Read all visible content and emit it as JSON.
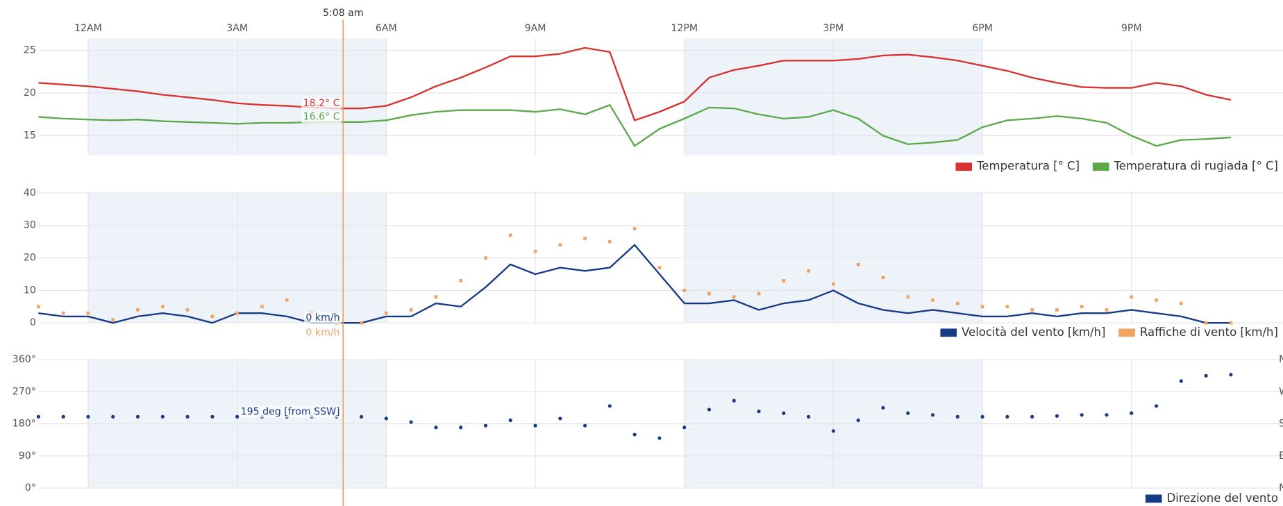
{
  "cursor": {
    "x": 5.133,
    "label": "5:08 am"
  },
  "chart_data": [
    {
      "type": "line",
      "x": [
        -1,
        -0.5,
        0,
        0.5,
        1,
        1.5,
        2,
        2.5,
        3,
        3.5,
        4,
        4.5,
        5,
        5.5,
        6,
        6.5,
        7,
        7.5,
        8,
        8.5,
        9,
        9.5,
        10,
        10.5,
        11,
        11.5,
        12,
        12.5,
        13,
        13.5,
        14,
        14.5,
        15,
        15.5,
        16,
        16.5,
        17,
        17.5,
        18,
        18.5,
        19,
        19.5,
        20,
        20.5,
        21,
        21.5,
        22,
        22.5,
        23
      ],
      "xlim": [
        -1,
        24
      ],
      "xticks": [
        {
          "value": 0,
          "label": "12AM"
        },
        {
          "value": 3,
          "label": "3AM"
        },
        {
          "value": 6,
          "label": "6AM"
        },
        {
          "value": 9,
          "label": "9AM"
        },
        {
          "value": 12,
          "label": "12PM"
        },
        {
          "value": 15,
          "label": "3PM"
        },
        {
          "value": 18,
          "label": "6PM"
        },
        {
          "value": 21,
          "label": "9PM"
        }
      ],
      "shaded": [
        [
          0,
          6
        ],
        [
          12,
          18
        ]
      ],
      "ylim": [
        12.7,
        26.4
      ],
      "yticks": [
        15,
        20,
        25
      ],
      "grid": true,
      "legend": "bottom-right",
      "series": [
        {
          "name": "Temperatura [° C]",
          "color": "#d93232",
          "cursor_label": "18.2° C",
          "values": [
            21.2,
            21.0,
            20.8,
            20.5,
            20.2,
            19.8,
            19.5,
            19.2,
            18.8,
            18.6,
            18.5,
            18.3,
            18.2,
            18.2,
            18.5,
            19.5,
            20.8,
            21.8,
            23.0,
            24.3,
            24.3,
            24.6,
            25.3,
            24.8,
            16.8,
            17.8,
            19.0,
            21.8,
            22.7,
            23.2,
            23.8,
            23.8,
            23.8,
            24.0,
            24.4,
            24.5,
            24.2,
            23.8,
            23.2,
            22.6,
            21.8,
            21.2,
            20.7,
            20.6,
            20.6,
            21.2,
            20.8,
            19.8,
            19.2
          ]
        },
        {
          "name": "Temperatura di rugiada [° C]",
          "color": "#5ca84a",
          "cursor_label": "16.6° C",
          "values": [
            17.2,
            17.0,
            16.9,
            16.8,
            16.9,
            16.7,
            16.6,
            16.5,
            16.4,
            16.5,
            16.5,
            16.6,
            16.6,
            16.6,
            16.8,
            17.4,
            17.8,
            18.0,
            18.0,
            18.0,
            17.8,
            18.1,
            17.5,
            18.6,
            13.8,
            15.8,
            17.0,
            18.3,
            18.2,
            17.5,
            17.0,
            17.2,
            18.0,
            17.0,
            15.0,
            14.0,
            14.2,
            14.5,
            16.0,
            16.8,
            17.0,
            17.3,
            17.0,
            16.5,
            15.0,
            13.8,
            14.5,
            14.6,
            14.8
          ]
        }
      ]
    },
    {
      "type": "line",
      "x": [
        -1,
        -0.5,
        0,
        0.5,
        1,
        1.5,
        2,
        2.5,
        3,
        3.5,
        4,
        4.5,
        5,
        5.5,
        6,
        6.5,
        7,
        7.5,
        8,
        8.5,
        9,
        9.5,
        10,
        10.5,
        11,
        11.5,
        12,
        12.5,
        13,
        13.5,
        14,
        14.5,
        15,
        15.5,
        16,
        16.5,
        17,
        17.5,
        18,
        18.5,
        19,
        19.5,
        20,
        20.5,
        21,
        21.5,
        22,
        22.5,
        23
      ],
      "xlim": [
        -1,
        24
      ],
      "ylim": [
        0,
        40
      ],
      "yticks": [
        0,
        10,
        20,
        30,
        40
      ],
      "grid": true,
      "legend": "bottom-right",
      "series": [
        {
          "name": "Velocità del vento [km/h]",
          "color": "#173a87",
          "cursor_label": "0 km/h",
          "values": [
            3,
            2,
            2,
            0,
            2,
            3,
            2,
            0,
            3,
            3,
            2,
            0,
            0,
            0,
            2,
            2,
            6,
            5,
            11,
            18,
            15,
            17,
            16,
            17,
            24,
            15,
            6,
            6,
            7,
            4,
            6,
            7,
            10,
            6,
            4,
            3,
            4,
            3,
            2,
            2,
            3,
            2,
            3,
            3,
            4,
            3,
            2,
            0,
            0
          ]
        },
        {
          "name": "Raffiche di vento [km/h]",
          "color": "#f0a464",
          "type": "scatter",
          "cursor_label": "0 km/h",
          "values": [
            5,
            3,
            3,
            1,
            4,
            5,
            4,
            2,
            3,
            5,
            7,
            3,
            0,
            0,
            3,
            4,
            8,
            13,
            20,
            27,
            22,
            24,
            26,
            25,
            29,
            17,
            10,
            9,
            8,
            9,
            13,
            16,
            12,
            18,
            14,
            8,
            7,
            6,
            5,
            5,
            4,
            4,
            5,
            4,
            8,
            7,
            6,
            0,
            0
          ]
        }
      ]
    },
    {
      "type": "scatter",
      "x": [
        -1,
        -0.5,
        0,
        0.5,
        1,
        1.5,
        2,
        2.5,
        3,
        3.5,
        4,
        4.5,
        5,
        5.5,
        6,
        6.5,
        7,
        7.5,
        8,
        8.5,
        9,
        9.5,
        10,
        10.5,
        11,
        11.5,
        12,
        12.5,
        13,
        13.5,
        14,
        14.5,
        15,
        15.5,
        16,
        16.5,
        17,
        17.5,
        18,
        18.5,
        19,
        19.5,
        20,
        20.5,
        21,
        21.5,
        22,
        22.5,
        23
      ],
      "xlim": [
        -1,
        24
      ],
      "ylim": [
        0,
        360
      ],
      "yticks": [
        {
          "value": 0,
          "label": "0°"
        },
        {
          "value": 90,
          "label": "90°"
        },
        {
          "value": 180,
          "label": "180°"
        },
        {
          "value": 270,
          "label": "270°"
        },
        {
          "value": 360,
          "label": "360°"
        }
      ],
      "y2ticks": [
        {
          "value": 0,
          "label": "N"
        },
        {
          "value": 90,
          "label": "E"
        },
        {
          "value": 180,
          "label": "S"
        },
        {
          "value": 270,
          "label": "W"
        },
        {
          "value": 360,
          "label": "N"
        }
      ],
      "grid": true,
      "legend": "bottom-right",
      "series": [
        {
          "name": "Direzione del vento",
          "color": "#173a87",
          "cursor_label": "195 deg [from SSW]",
          "values": [
            200,
            200,
            200,
            200,
            200,
            200,
            200,
            200,
            200,
            200,
            200,
            200,
            200,
            200,
            195,
            185,
            170,
            170,
            175,
            190,
            175,
            195,
            175,
            230,
            150,
            140,
            170,
            220,
            245,
            215,
            210,
            200,
            160,
            190,
            225,
            210,
            205,
            200,
            200,
            200,
            200,
            202,
            205,
            205,
            210,
            230,
            300,
            315,
            318
          ]
        }
      ]
    }
  ]
}
